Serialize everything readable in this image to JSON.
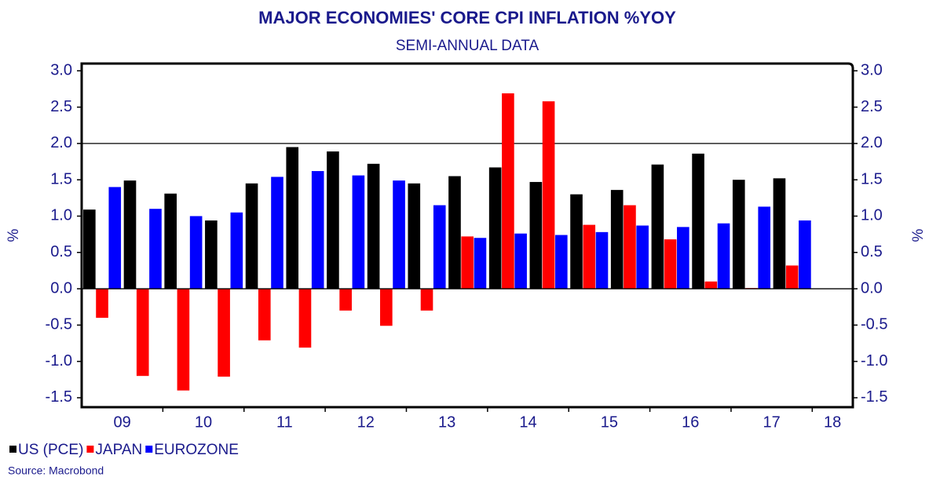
{
  "chart_data": {
    "type": "bar",
    "title": "MAJOR ECONOMIES' CORE CPI INFLATION %YOY",
    "subtitle": "SEMI-ANNUAL DATA",
    "ylabel": "%",
    "source": "Source: Macrobond",
    "categories": [
      null,
      null,
      null,
      null,
      null,
      null,
      null,
      null,
      null,
      null,
      null,
      null,
      null,
      null,
      null,
      null,
      null,
      null,
      null
    ],
    "year_labels": [
      "09",
      "10",
      "11",
      "12",
      "13",
      "14",
      "15",
      "16",
      "17",
      "18"
    ],
    "series": [
      {
        "name": "US (PCE)",
        "color": "#000000",
        "values": [
          1.09,
          1.49,
          1.31,
          0.94,
          1.45,
          1.95,
          1.89,
          1.72,
          1.45,
          1.55,
          1.67,
          1.47,
          1.3,
          1.36,
          1.71,
          1.86,
          1.5,
          1.52,
          null
        ]
      },
      {
        "name": "JAPAN",
        "color": "#ff0000",
        "values": [
          -0.4,
          -1.2,
          -1.4,
          -1.21,
          -0.71,
          -0.81,
          -0.3,
          -0.51,
          -0.3,
          0.72,
          2.69,
          2.58,
          0.88,
          1.15,
          0.68,
          0.1,
          0.01,
          0.32,
          null
        ]
      },
      {
        "name": "EUROZONE",
        "color": "#0000ff",
        "values": [
          1.4,
          1.1,
          1.0,
          1.05,
          1.54,
          1.62,
          1.56,
          1.49,
          1.15,
          0.7,
          0.76,
          0.74,
          0.78,
          0.87,
          0.85,
          0.9,
          1.13,
          0.94,
          null
        ]
      }
    ],
    "ylim": [
      -1.63,
      3.1
    ],
    "yticks": [
      {
        "value": 3.0,
        "label": "3.0"
      },
      2.5,
      {
        "value": 2.0,
        "label": "2.0"
      },
      1.5,
      {
        "value": 1.0,
        "label": "1.0"
      },
      0.5,
      {
        "value": 0.0,
        "label": "0.0"
      },
      -0.5,
      {
        "value": -1.0,
        "label": "-1.0"
      },
      -1.5
    ],
    "hline": 2.0
  }
}
